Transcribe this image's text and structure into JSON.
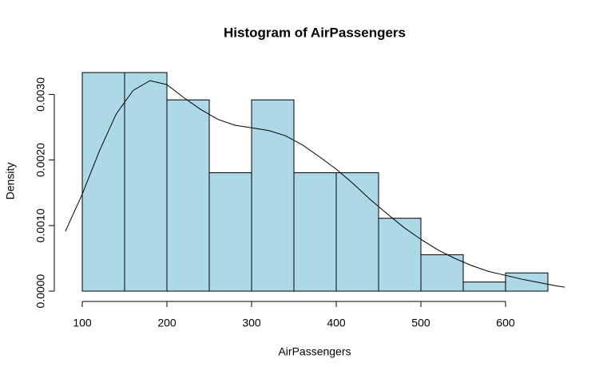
{
  "chart_data": {
    "type": "histogram",
    "title": "Histogram of AirPassengers",
    "xlabel": "AirPassengers",
    "ylabel": "Density",
    "bins": [
      100,
      150,
      200,
      250,
      300,
      350,
      400,
      450,
      500,
      550,
      600,
      650
    ],
    "values": [
      0.0033333,
      0.0033333,
      0.0029167,
      0.0018056,
      0.0029167,
      0.0018056,
      0.0018056,
      0.0011111,
      0.00055556,
      0.00013889,
      0.00027778
    ],
    "color": "#add8e6",
    "density": {
      "color": "#000000",
      "x": [
        80,
        100,
        120,
        140,
        160,
        180,
        200,
        220,
        240,
        260,
        280,
        300,
        320,
        340,
        360,
        380,
        400,
        420,
        440,
        460,
        480,
        500,
        520,
        540,
        560,
        580,
        600,
        620,
        640,
        660,
        670
      ],
      "values": [
        0.00091,
        0.00148,
        0.00213,
        0.0027,
        0.00306,
        0.00321,
        0.00315,
        0.00295,
        0.00277,
        0.00262,
        0.00253,
        0.00249,
        0.00245,
        0.00237,
        0.00223,
        0.00205,
        0.00186,
        0.00164,
        0.0014,
        0.00118,
        0.00097,
        0.00079,
        0.00063,
        0.0005,
        0.00039,
        0.0003,
        0.00024,
        0.00018,
        0.00013,
        8e-05,
        6e-05
      ]
    },
    "xlim": [
      78,
      672
    ],
    "ylim": [
      -0.000133,
      0.003467
    ],
    "xticks": [
      100,
      200,
      300,
      400,
      500,
      600
    ],
    "yticks": [
      {
        "value": 0,
        "label": "0.0000"
      },
      {
        "value": 0.001,
        "label": "0.0010"
      },
      {
        "value": 0.002,
        "label": "0.0020"
      },
      {
        "value": 0.003,
        "label": "0.0030"
      }
    ]
  }
}
